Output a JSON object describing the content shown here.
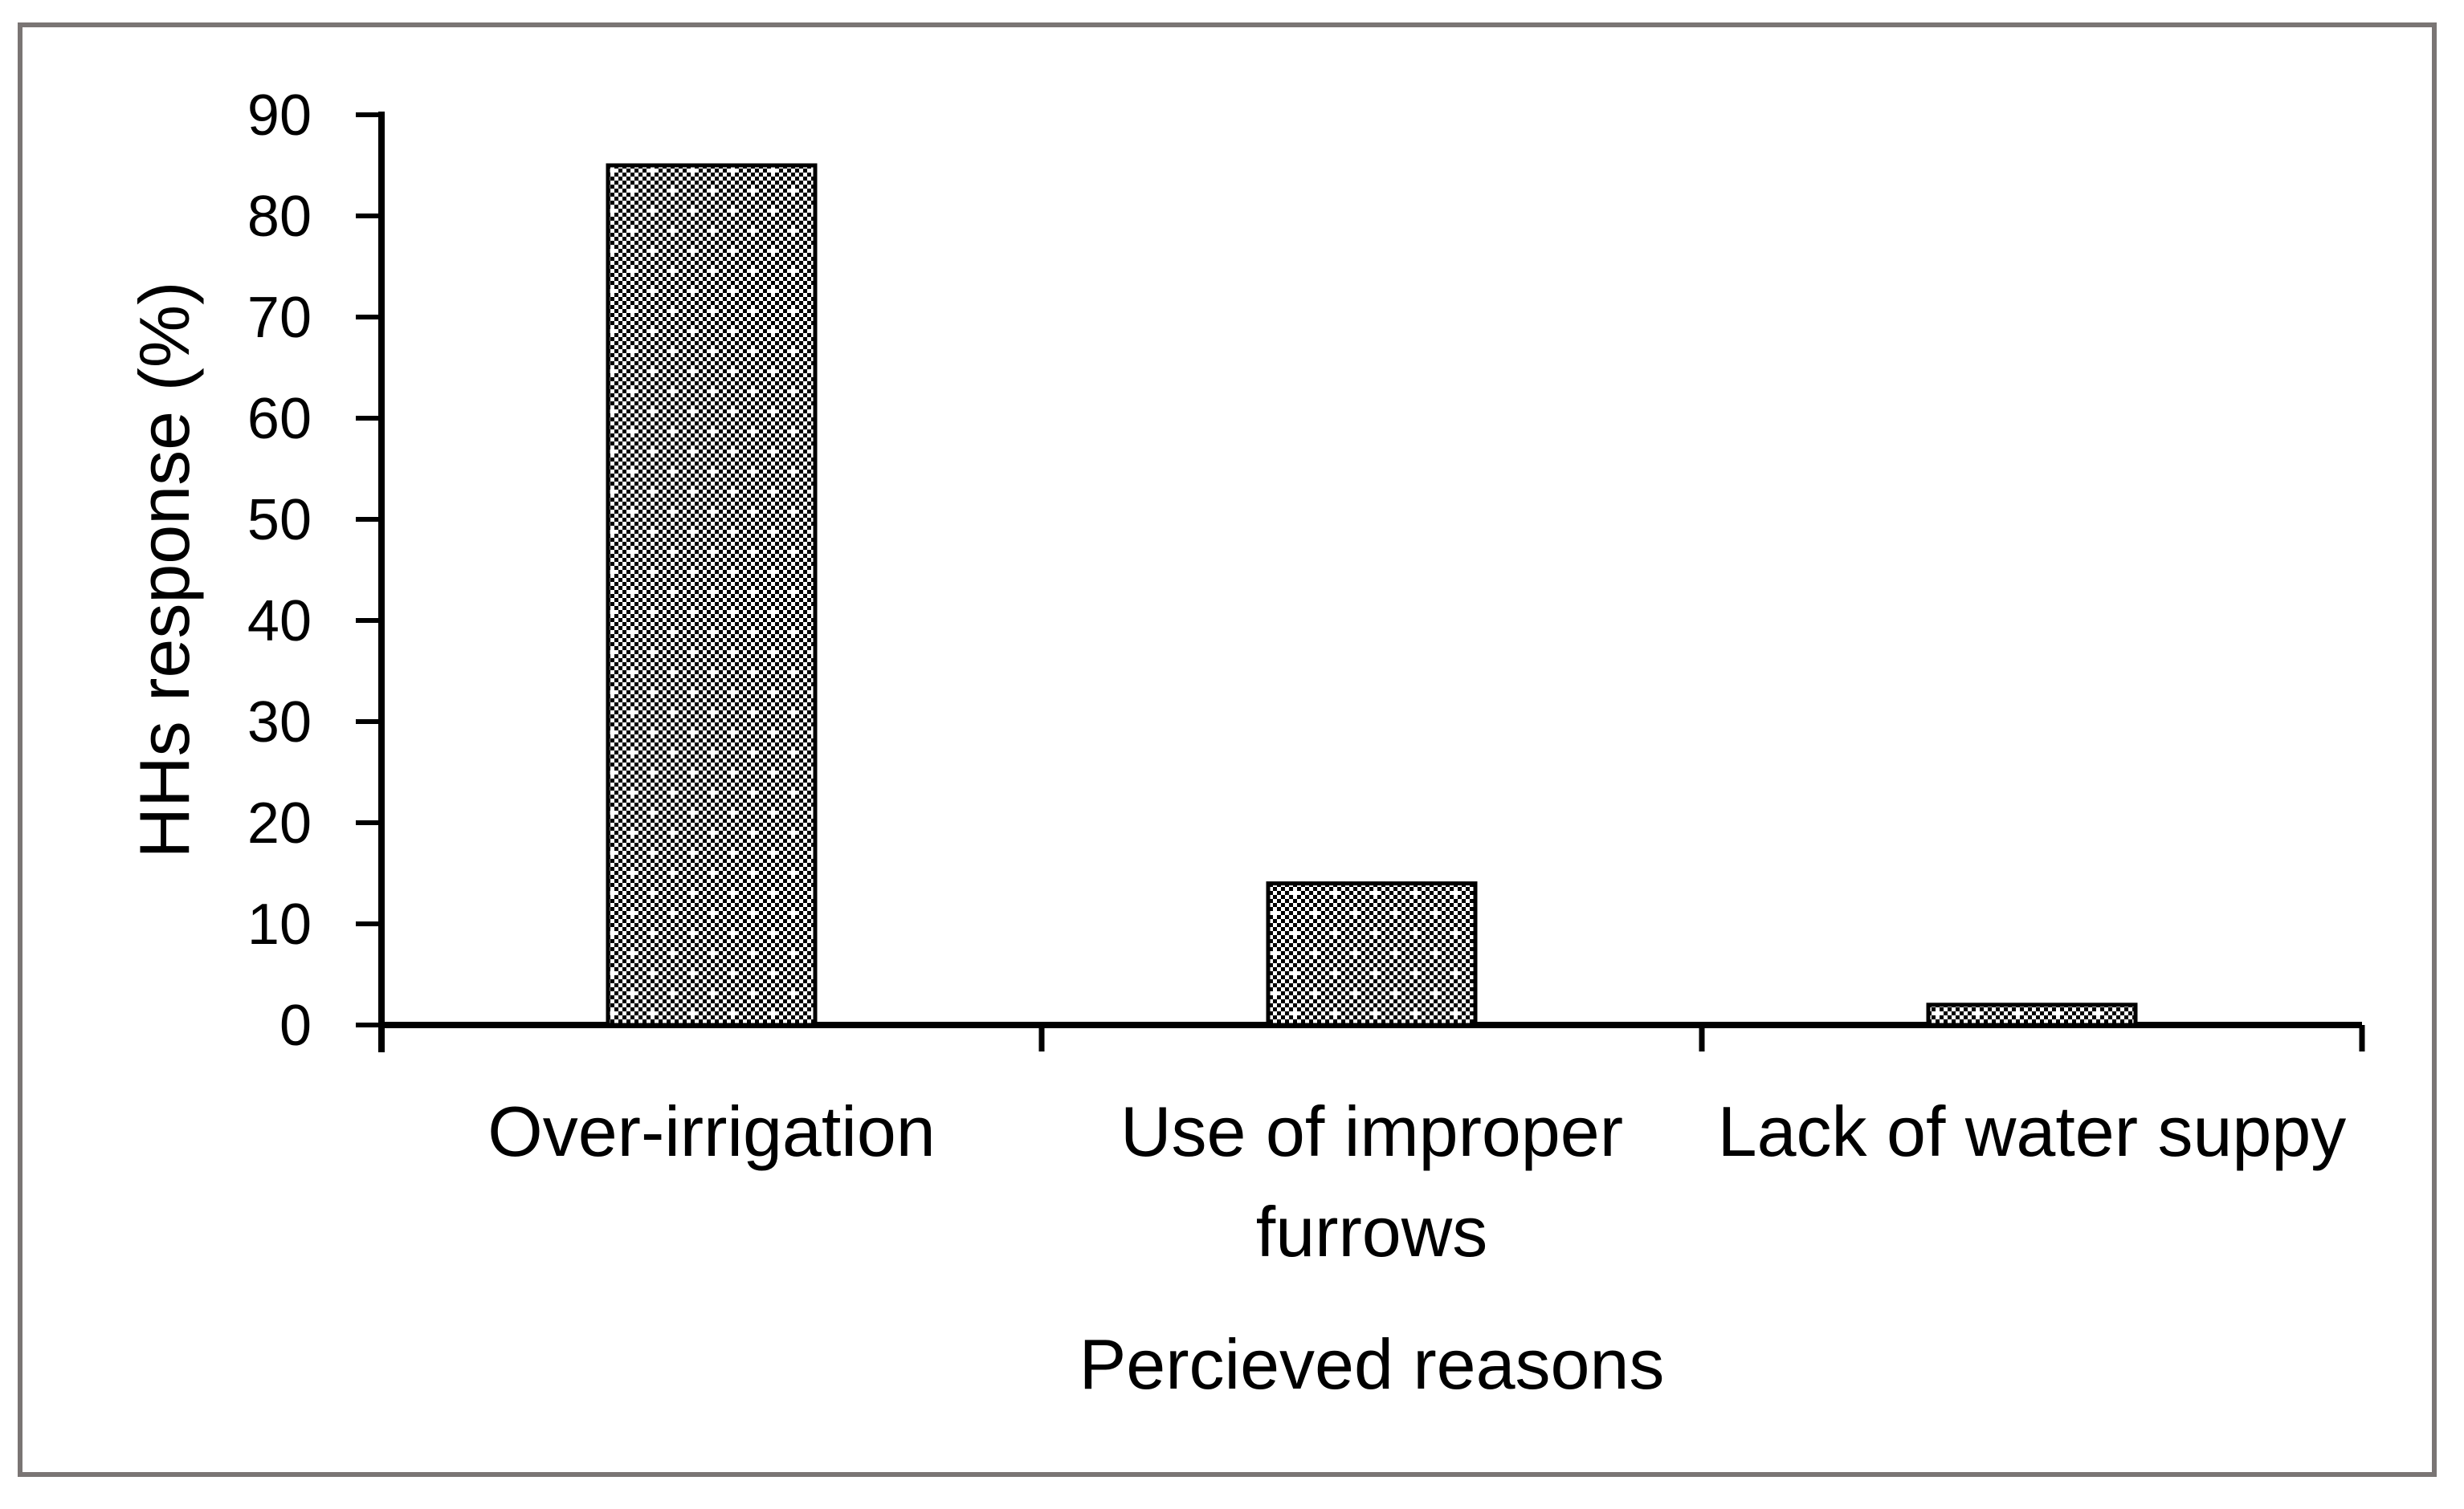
{
  "page": {
    "background": "#ffffff",
    "frame_color": "#7a7574"
  },
  "chart_data": {
    "type": "bar",
    "title": "",
    "categories": [
      "Over-irrigation",
      "Use of improper furrows",
      "Lack of water suppy"
    ],
    "category_label_lines": [
      [
        "Over-irrigation"
      ],
      [
        "Use of improper",
        "furrows"
      ],
      [
        "Lack of water suppy"
      ]
    ],
    "values": [
      85,
      14,
      2
    ],
    "xlabel": "Percieved reasons",
    "ylabel": "HHs response (%)",
    "ylim": [
      0,
      90
    ],
    "ytick_interval": 10,
    "ytick_labels": [
      "0",
      "10",
      "20",
      "30",
      "40",
      "50",
      "60",
      "70",
      "80",
      "90"
    ],
    "grid": false,
    "legend_position": "none",
    "bar_pattern": "dotted-diamond-checker",
    "bar_outline_color": "#000000",
    "axis_color": "#000000",
    "text_color": "#000000"
  }
}
